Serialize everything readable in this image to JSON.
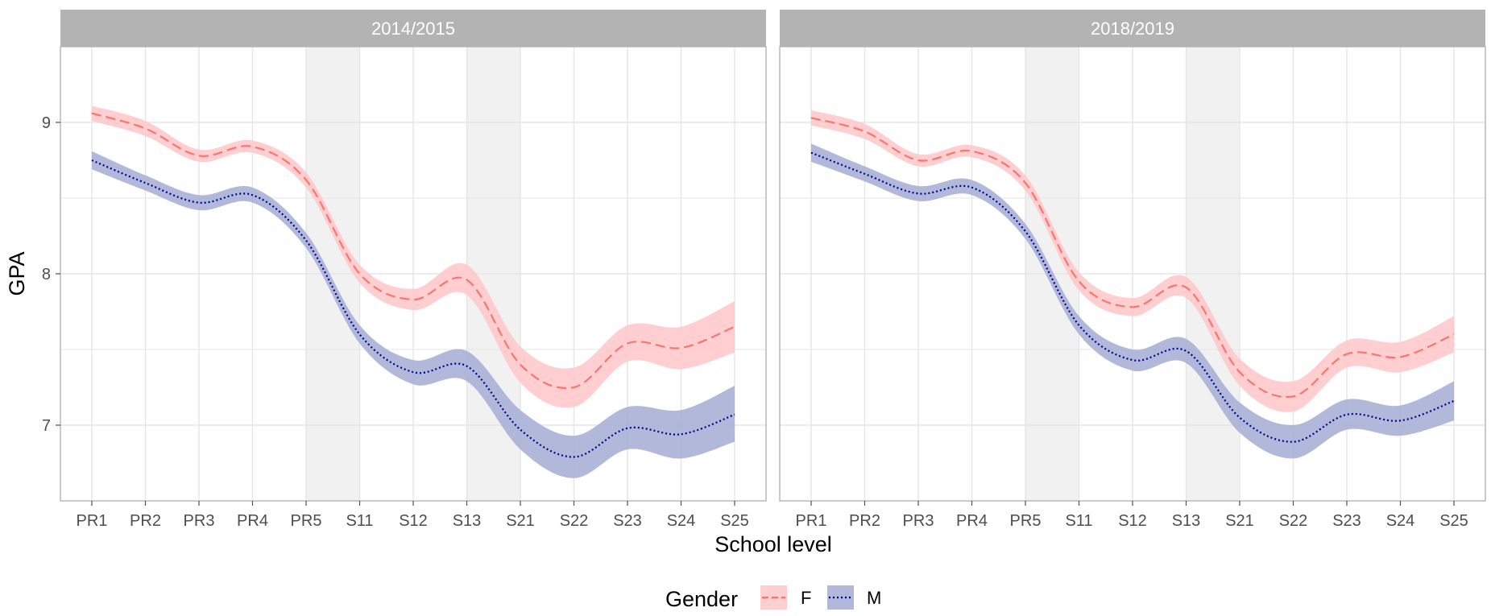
{
  "chart_data": {
    "type": "line",
    "facet_type": "faceted line chart with confidence ribbons",
    "xlabel": "School level",
    "ylabel": "GPA",
    "categories": [
      "PR1",
      "PR2",
      "PR3",
      "PR4",
      "PR5",
      "S11",
      "S12",
      "S13",
      "S21",
      "S22",
      "S23",
      "S24",
      "S25"
    ],
    "ylim": [
      6.5,
      9.5
    ],
    "yticks": [
      7,
      8,
      9
    ],
    "y_tick_labels": [
      "7",
      "8",
      "9"
    ],
    "grid": true,
    "shaded_intervals": [
      [
        "PR5",
        "S11"
      ],
      [
        "S13",
        "S21"
      ]
    ],
    "legend": {
      "title": "Gender",
      "placement": "bottom",
      "entries": [
        {
          "label": "F",
          "color": "#F8766D",
          "ribbon": "#FFC9CB",
          "linestyle": "dashed"
        },
        {
          "label": "M",
          "color": "#00008B",
          "ribbon": "#A8B0D6",
          "linestyle": "dotted"
        }
      ]
    },
    "panels": [
      {
        "title": "2014/2015",
        "series": [
          {
            "name": "F",
            "values": [
              9.06,
              8.96,
              8.78,
              8.84,
              8.62,
              8.0,
              7.83,
              7.96,
              7.4,
              7.25,
              7.54,
              7.51,
              7.65
            ],
            "lower": [
              9.01,
              8.91,
              8.74,
              8.8,
              8.57,
              7.94,
              7.76,
              7.86,
              7.28,
              7.12,
              7.42,
              7.37,
              7.48
            ],
            "upper": [
              9.11,
              9.01,
              8.82,
              8.88,
              8.67,
              8.06,
              7.9,
              8.06,
              7.52,
              7.38,
              7.66,
              7.65,
              7.82
            ]
          },
          {
            "name": "M",
            "values": [
              8.75,
              8.6,
              8.47,
              8.52,
              8.22,
              7.6,
              7.35,
              7.39,
              6.97,
              6.79,
              6.98,
              6.94,
              7.07
            ],
            "lower": [
              8.69,
              8.55,
              8.42,
              8.47,
              8.17,
              7.54,
              7.27,
              7.29,
              6.84,
              6.65,
              6.84,
              6.78,
              6.89
            ],
            "upper": [
              8.81,
              8.65,
              8.52,
              8.57,
              8.27,
              7.66,
              7.43,
              7.49,
              7.1,
              6.93,
              7.12,
              7.1,
              7.26
            ]
          }
        ]
      },
      {
        "title": "2018/2019",
        "series": [
          {
            "name": "F",
            "values": [
              9.03,
              8.94,
              8.75,
              8.81,
              8.6,
              7.95,
              7.78,
              7.91,
              7.35,
              7.19,
              7.47,
              7.45,
              7.6
            ],
            "lower": [
              8.98,
              8.89,
              8.71,
              8.77,
              8.55,
              7.89,
              7.72,
              7.84,
              7.26,
              7.09,
              7.38,
              7.35,
              7.48
            ],
            "upper": [
              9.08,
              8.99,
              8.79,
              8.85,
              8.65,
              8.01,
              7.84,
              7.98,
              7.44,
              7.29,
              7.56,
              7.55,
              7.72
            ]
          },
          {
            "name": "M",
            "values": [
              8.8,
              8.66,
              8.53,
              8.57,
              8.28,
              7.66,
              7.43,
              7.49,
              7.05,
              6.89,
              7.07,
              7.03,
              7.16
            ],
            "lower": [
              8.74,
              8.61,
              8.48,
              8.52,
              8.23,
              7.6,
              7.36,
              7.41,
              6.95,
              6.78,
              6.97,
              6.93,
              7.03
            ],
            "upper": [
              8.86,
              8.71,
              8.58,
              8.62,
              8.33,
              7.72,
              7.5,
              7.57,
              7.15,
              7.0,
              7.17,
              7.13,
              7.29
            ]
          }
        ]
      }
    ]
  },
  "colors": {
    "strip": "#B3B3B3",
    "strip_text": "#FFFFFF",
    "panel_border": "#B3B3B3",
    "grid": "#E5E5E5",
    "shade": "#F1F1F1",
    "axis_text": "#4D4D4D",
    "title_text": "#000000"
  }
}
